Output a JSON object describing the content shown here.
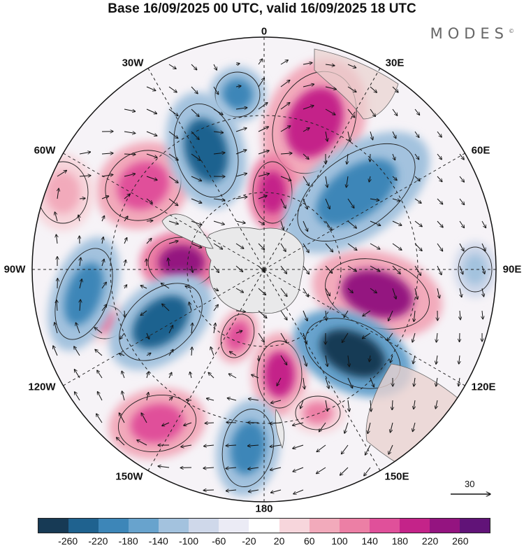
{
  "title": "Base 16/09/2025 00 UTC, valid 16/09/2025 18 UTC",
  "brand": {
    "name": "MODES",
    "mark": "©"
  },
  "meridian_labels": {
    "lon_0": "0",
    "lon_30e": "30E",
    "lon_60e": "60E",
    "lon_90e": "90E",
    "lon_120e": "120E",
    "lon_150e": "150E",
    "lon_180": "180",
    "lon_150w": "150W",
    "lon_120w": "120W",
    "lon_90w": "90W",
    "lon_60w": "60W",
    "lon_30w": "30W"
  },
  "vector_reference": {
    "label": "30"
  },
  "colorbar": {
    "colors": [
      "#173a55",
      "#1f628f",
      "#3d86b8",
      "#68a3cd",
      "#a3c2de",
      "#cfd8ea",
      "#ebebf5",
      "#ffffff",
      "#f7d6dc",
      "#f2aabb",
      "#ec7fa5",
      "#e0509a",
      "#c42389",
      "#941480",
      "#611378"
    ],
    "tick_labels": [
      "-260",
      "-220",
      "-180",
      "-140",
      "-100",
      "-60",
      "-20",
      "20",
      "60",
      "100",
      "140",
      "180",
      "220",
      "260"
    ]
  },
  "colors": {
    "ocean_bg": "#ffffff",
    "land_gray": "#ececec",
    "grid": "#222222",
    "coast": "#555555"
  }
}
